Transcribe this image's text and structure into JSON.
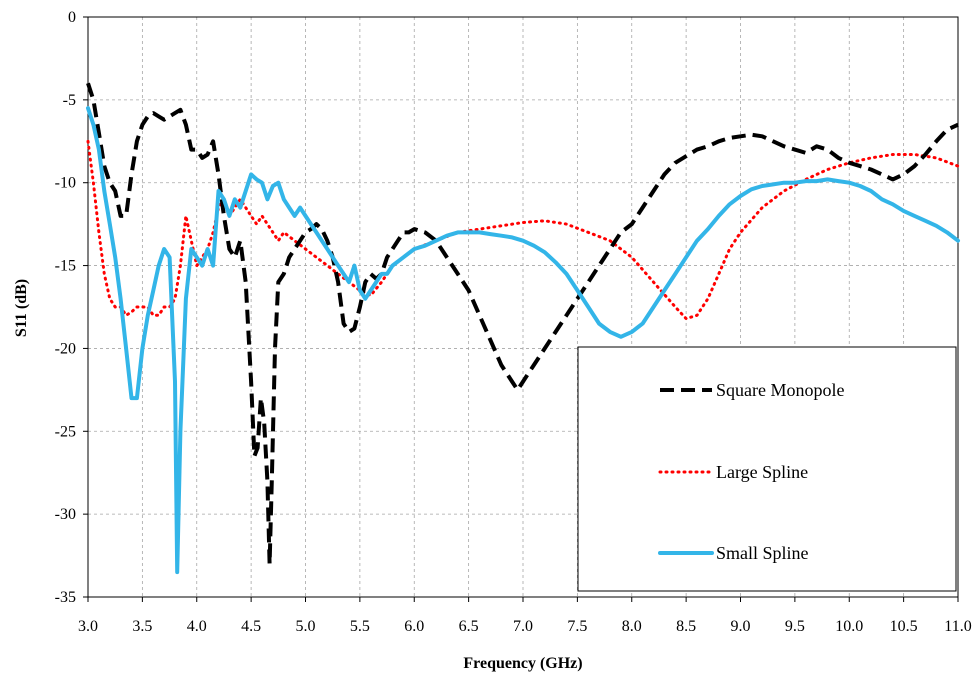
{
  "chart_data": {
    "type": "line",
    "title": "",
    "xlabel": "Frequency (GHz)",
    "ylabel": "S11 (dB)",
    "xlim": [
      3.0,
      11.0
    ],
    "ylim": [
      -35,
      0
    ],
    "x_ticks": [
      "3.0",
      "3.5",
      "4.0",
      "4.5",
      "5.0",
      "5.5",
      "6.0",
      "6.5",
      "7.0",
      "7.5",
      "8.0",
      "8.5",
      "9.0",
      "9.5",
      "10.0",
      "10.5",
      "11.0"
    ],
    "y_ticks": [
      "0",
      "-5",
      "-10",
      "-15",
      "-20",
      "-25",
      "-30",
      "-35"
    ],
    "grid": true,
    "legend_position": "bottom-right",
    "series": [
      {
        "name": "Square Monopole",
        "color": "#000000",
        "style": "dashed",
        "points": [
          [
            3.0,
            -4.0
          ],
          [
            3.05,
            -5.0
          ],
          [
            3.1,
            -7.0
          ],
          [
            3.15,
            -9.0
          ],
          [
            3.2,
            -10.0
          ],
          [
            3.25,
            -10.5
          ],
          [
            3.3,
            -12.0
          ],
          [
            3.35,
            -12.0
          ],
          [
            3.4,
            -9.5
          ],
          [
            3.45,
            -7.5
          ],
          [
            3.5,
            -6.5
          ],
          [
            3.55,
            -6.0
          ],
          [
            3.6,
            -5.8
          ],
          [
            3.65,
            -6.0
          ],
          [
            3.7,
            -6.2
          ],
          [
            3.75,
            -6.0
          ],
          [
            3.8,
            -5.8
          ],
          [
            3.85,
            -5.6
          ],
          [
            3.9,
            -6.5
          ],
          [
            3.95,
            -8.0
          ],
          [
            4.0,
            -8.0
          ],
          [
            4.05,
            -8.5
          ],
          [
            4.1,
            -8.3
          ],
          [
            4.15,
            -7.5
          ],
          [
            4.2,
            -9.5
          ],
          [
            4.25,
            -12.0
          ],
          [
            4.3,
            -14.0
          ],
          [
            4.35,
            -14.5
          ],
          [
            4.4,
            -13.5
          ],
          [
            4.45,
            -16.0
          ],
          [
            4.5,
            -22.0
          ],
          [
            4.53,
            -26.5
          ],
          [
            4.56,
            -26.0
          ],
          [
            4.59,
            -23.0
          ],
          [
            4.62,
            -24.5
          ],
          [
            4.65,
            -28.0
          ],
          [
            4.67,
            -33.0
          ],
          [
            4.69,
            -28.0
          ],
          [
            4.72,
            -20.0
          ],
          [
            4.75,
            -16.0
          ],
          [
            4.8,
            -15.5
          ],
          [
            4.85,
            -14.5
          ],
          [
            4.9,
            -14.0
          ],
          [
            4.95,
            -13.5
          ],
          [
            5.0,
            -13.0
          ],
          [
            5.05,
            -12.8
          ],
          [
            5.1,
            -12.5
          ],
          [
            5.15,
            -12.8
          ],
          [
            5.2,
            -13.5
          ],
          [
            5.25,
            -14.5
          ],
          [
            5.3,
            -16.0
          ],
          [
            5.35,
            -18.5
          ],
          [
            5.4,
            -19.0
          ],
          [
            5.45,
            -18.8
          ],
          [
            5.5,
            -17.5
          ],
          [
            5.55,
            -16.0
          ],
          [
            5.6,
            -15.5
          ],
          [
            5.65,
            -15.8
          ],
          [
            5.7,
            -15.5
          ],
          [
            5.75,
            -14.5
          ],
          [
            5.8,
            -14.0
          ],
          [
            5.85,
            -13.5
          ],
          [
            5.9,
            -13.0
          ],
          [
            5.95,
            -13.0
          ],
          [
            6.0,
            -12.8
          ],
          [
            6.1,
            -13.0
          ],
          [
            6.2,
            -13.5
          ],
          [
            6.3,
            -14.5
          ],
          [
            6.4,
            -15.5
          ],
          [
            6.5,
            -16.5
          ],
          [
            6.6,
            -18.0
          ],
          [
            6.7,
            -19.5
          ],
          [
            6.8,
            -21.0
          ],
          [
            6.9,
            -22.0
          ],
          [
            6.95,
            -22.5
          ],
          [
            7.0,
            -22.0
          ],
          [
            7.05,
            -21.5
          ],
          [
            7.1,
            -21.0
          ],
          [
            7.2,
            -20.0
          ],
          [
            7.3,
            -19.0
          ],
          [
            7.4,
            -18.0
          ],
          [
            7.5,
            -17.0
          ],
          [
            7.6,
            -16.0
          ],
          [
            7.7,
            -15.0
          ],
          [
            7.8,
            -14.0
          ],
          [
            7.9,
            -13.0
          ],
          [
            8.0,
            -12.5
          ],
          [
            8.1,
            -11.5
          ],
          [
            8.2,
            -10.5
          ],
          [
            8.3,
            -9.5
          ],
          [
            8.4,
            -8.8
          ],
          [
            8.5,
            -8.4
          ],
          [
            8.6,
            -8.0
          ],
          [
            8.7,
            -7.8
          ],
          [
            8.8,
            -7.5
          ],
          [
            8.9,
            -7.3
          ],
          [
            9.0,
            -7.2
          ],
          [
            9.1,
            -7.1
          ],
          [
            9.2,
            -7.2
          ],
          [
            9.3,
            -7.5
          ],
          [
            9.4,
            -7.8
          ],
          [
            9.5,
            -8.0
          ],
          [
            9.6,
            -8.2
          ],
          [
            9.7,
            -7.8
          ],
          [
            9.8,
            -8.0
          ],
          [
            9.9,
            -8.5
          ],
          [
            10.0,
            -8.8
          ],
          [
            10.1,
            -9.0
          ],
          [
            10.2,
            -9.2
          ],
          [
            10.3,
            -9.5
          ],
          [
            10.4,
            -9.8
          ],
          [
            10.5,
            -9.5
          ],
          [
            10.6,
            -9.0
          ],
          [
            10.7,
            -8.3
          ],
          [
            10.8,
            -7.5
          ],
          [
            10.9,
            -6.8
          ],
          [
            11.0,
            -6.5
          ]
        ]
      },
      {
        "name": "Large Spline",
        "color": "#ff0000",
        "style": "dotted",
        "points": [
          [
            3.0,
            -7.5
          ],
          [
            3.05,
            -10.0
          ],
          [
            3.1,
            -13.0
          ],
          [
            3.15,
            -15.5
          ],
          [
            3.2,
            -17.0
          ],
          [
            3.25,
            -17.5
          ],
          [
            3.3,
            -17.5
          ],
          [
            3.35,
            -18.0
          ],
          [
            3.4,
            -17.8
          ],
          [
            3.45,
            -17.5
          ],
          [
            3.5,
            -17.5
          ],
          [
            3.55,
            -17.5
          ],
          [
            3.6,
            -18.0
          ],
          [
            3.65,
            -18.0
          ],
          [
            3.7,
            -17.5
          ],
          [
            3.75,
            -17.5
          ],
          [
            3.8,
            -17.0
          ],
          [
            3.85,
            -15.0
          ],
          [
            3.9,
            -12.0
          ],
          [
            3.95,
            -13.5
          ],
          [
            4.0,
            -15.0
          ],
          [
            4.05,
            -14.5
          ],
          [
            4.1,
            -14.0
          ],
          [
            4.15,
            -13.0
          ],
          [
            4.2,
            -11.5
          ],
          [
            4.25,
            -11.0
          ],
          [
            4.3,
            -12.0
          ],
          [
            4.35,
            -11.5
          ],
          [
            4.4,
            -11.0
          ],
          [
            4.45,
            -11.5
          ],
          [
            4.5,
            -12.0
          ],
          [
            4.55,
            -12.5
          ],
          [
            4.6,
            -12.0
          ],
          [
            4.65,
            -12.5
          ],
          [
            4.7,
            -13.0
          ],
          [
            4.75,
            -13.5
          ],
          [
            4.8,
            -13.0
          ],
          [
            4.9,
            -13.5
          ],
          [
            5.0,
            -14.0
          ],
          [
            5.1,
            -14.5
          ],
          [
            5.2,
            -15.0
          ],
          [
            5.3,
            -15.5
          ],
          [
            5.4,
            -16.0
          ],
          [
            5.5,
            -16.5
          ],
          [
            5.6,
            -16.8
          ],
          [
            5.7,
            -16.0
          ],
          [
            5.8,
            -15.0
          ],
          [
            5.9,
            -14.5
          ],
          [
            6.0,
            -14.0
          ],
          [
            6.2,
            -13.5
          ],
          [
            6.4,
            -13.0
          ],
          [
            6.6,
            -12.8
          ],
          [
            6.8,
            -12.6
          ],
          [
            7.0,
            -12.4
          ],
          [
            7.2,
            -12.3
          ],
          [
            7.4,
            -12.5
          ],
          [
            7.6,
            -13.0
          ],
          [
            7.8,
            -13.5
          ],
          [
            8.0,
            -14.5
          ],
          [
            8.2,
            -16.0
          ],
          [
            8.4,
            -17.5
          ],
          [
            8.5,
            -18.2
          ],
          [
            8.6,
            -18.0
          ],
          [
            8.7,
            -17.0
          ],
          [
            8.8,
            -15.5
          ],
          [
            8.9,
            -14.0
          ],
          [
            9.0,
            -13.0
          ],
          [
            9.2,
            -11.5
          ],
          [
            9.4,
            -10.5
          ],
          [
            9.6,
            -9.8
          ],
          [
            9.8,
            -9.2
          ],
          [
            10.0,
            -8.8
          ],
          [
            10.2,
            -8.5
          ],
          [
            10.4,
            -8.3
          ],
          [
            10.6,
            -8.3
          ],
          [
            10.8,
            -8.5
          ],
          [
            11.0,
            -9.0
          ]
        ]
      },
      {
        "name": "Small Spline",
        "color": "#33b5e8",
        "style": "solid",
        "points": [
          [
            3.0,
            -5.5
          ],
          [
            3.05,
            -6.5
          ],
          [
            3.1,
            -8.0
          ],
          [
            3.15,
            -10.5
          ],
          [
            3.2,
            -12.5
          ],
          [
            3.25,
            -14.5
          ],
          [
            3.3,
            -17.0
          ],
          [
            3.35,
            -20.0
          ],
          [
            3.4,
            -23.0
          ],
          [
            3.45,
            -23.0
          ],
          [
            3.5,
            -20.0
          ],
          [
            3.55,
            -18.0
          ],
          [
            3.6,
            -16.5
          ],
          [
            3.65,
            -15.0
          ],
          [
            3.7,
            -14.0
          ],
          [
            3.75,
            -14.5
          ],
          [
            3.8,
            -22.0
          ],
          [
            3.82,
            -33.5
          ],
          [
            3.85,
            -25.0
          ],
          [
            3.9,
            -17.0
          ],
          [
            3.95,
            -14.0
          ],
          [
            4.0,
            -14.5
          ],
          [
            4.05,
            -15.0
          ],
          [
            4.1,
            -14.0
          ],
          [
            4.15,
            -15.0
          ],
          [
            4.2,
            -10.5
          ],
          [
            4.25,
            -11.0
          ],
          [
            4.3,
            -12.0
          ],
          [
            4.35,
            -11.0
          ],
          [
            4.4,
            -11.5
          ],
          [
            4.45,
            -10.5
          ],
          [
            4.5,
            -9.5
          ],
          [
            4.55,
            -9.8
          ],
          [
            4.6,
            -10.0
          ],
          [
            4.65,
            -11.0
          ],
          [
            4.7,
            -10.2
          ],
          [
            4.75,
            -10.0
          ],
          [
            4.8,
            -11.0
          ],
          [
            4.85,
            -11.5
          ],
          [
            4.9,
            -12.0
          ],
          [
            4.95,
            -11.5
          ],
          [
            5.0,
            -12.0
          ],
          [
            5.05,
            -12.5
          ],
          [
            5.1,
            -13.0
          ],
          [
            5.15,
            -13.5
          ],
          [
            5.2,
            -14.0
          ],
          [
            5.25,
            -14.5
          ],
          [
            5.3,
            -15.0
          ],
          [
            5.35,
            -15.5
          ],
          [
            5.4,
            -16.0
          ],
          [
            5.45,
            -15.0
          ],
          [
            5.5,
            -16.5
          ],
          [
            5.55,
            -17.0
          ],
          [
            5.6,
            -16.5
          ],
          [
            5.65,
            -16.0
          ],
          [
            5.7,
            -15.5
          ],
          [
            5.75,
            -15.5
          ],
          [
            5.8,
            -15.0
          ],
          [
            5.9,
            -14.5
          ],
          [
            6.0,
            -14.0
          ],
          [
            6.1,
            -13.8
          ],
          [
            6.2,
            -13.5
          ],
          [
            6.3,
            -13.2
          ],
          [
            6.4,
            -13.0
          ],
          [
            6.5,
            -13.0
          ],
          [
            6.6,
            -13.0
          ],
          [
            6.7,
            -13.1
          ],
          [
            6.8,
            -13.2
          ],
          [
            6.9,
            -13.3
          ],
          [
            7.0,
            -13.5
          ],
          [
            7.1,
            -13.8
          ],
          [
            7.2,
            -14.2
          ],
          [
            7.3,
            -14.8
          ],
          [
            7.4,
            -15.5
          ],
          [
            7.5,
            -16.5
          ],
          [
            7.6,
            -17.5
          ],
          [
            7.7,
            -18.5
          ],
          [
            7.8,
            -19.0
          ],
          [
            7.9,
            -19.3
          ],
          [
            8.0,
            -19.0
          ],
          [
            8.1,
            -18.5
          ],
          [
            8.2,
            -17.5
          ],
          [
            8.3,
            -16.5
          ],
          [
            8.4,
            -15.5
          ],
          [
            8.5,
            -14.5
          ],
          [
            8.6,
            -13.5
          ],
          [
            8.7,
            -12.8
          ],
          [
            8.8,
            -12.0
          ],
          [
            8.9,
            -11.3
          ],
          [
            9.0,
            -10.8
          ],
          [
            9.1,
            -10.4
          ],
          [
            9.2,
            -10.2
          ],
          [
            9.3,
            -10.1
          ],
          [
            9.4,
            -10.0
          ],
          [
            9.5,
            -10.0
          ],
          [
            9.6,
            -9.9
          ],
          [
            9.7,
            -9.9
          ],
          [
            9.8,
            -9.8
          ],
          [
            9.9,
            -9.9
          ],
          [
            10.0,
            -10.0
          ],
          [
            10.1,
            -10.2
          ],
          [
            10.2,
            -10.5
          ],
          [
            10.3,
            -11.0
          ],
          [
            10.4,
            -11.3
          ],
          [
            10.5,
            -11.7
          ],
          [
            10.6,
            -12.0
          ],
          [
            10.7,
            -12.3
          ],
          [
            10.8,
            -12.6
          ],
          [
            10.9,
            -13.0
          ],
          [
            11.0,
            -13.5
          ]
        ]
      }
    ]
  }
}
